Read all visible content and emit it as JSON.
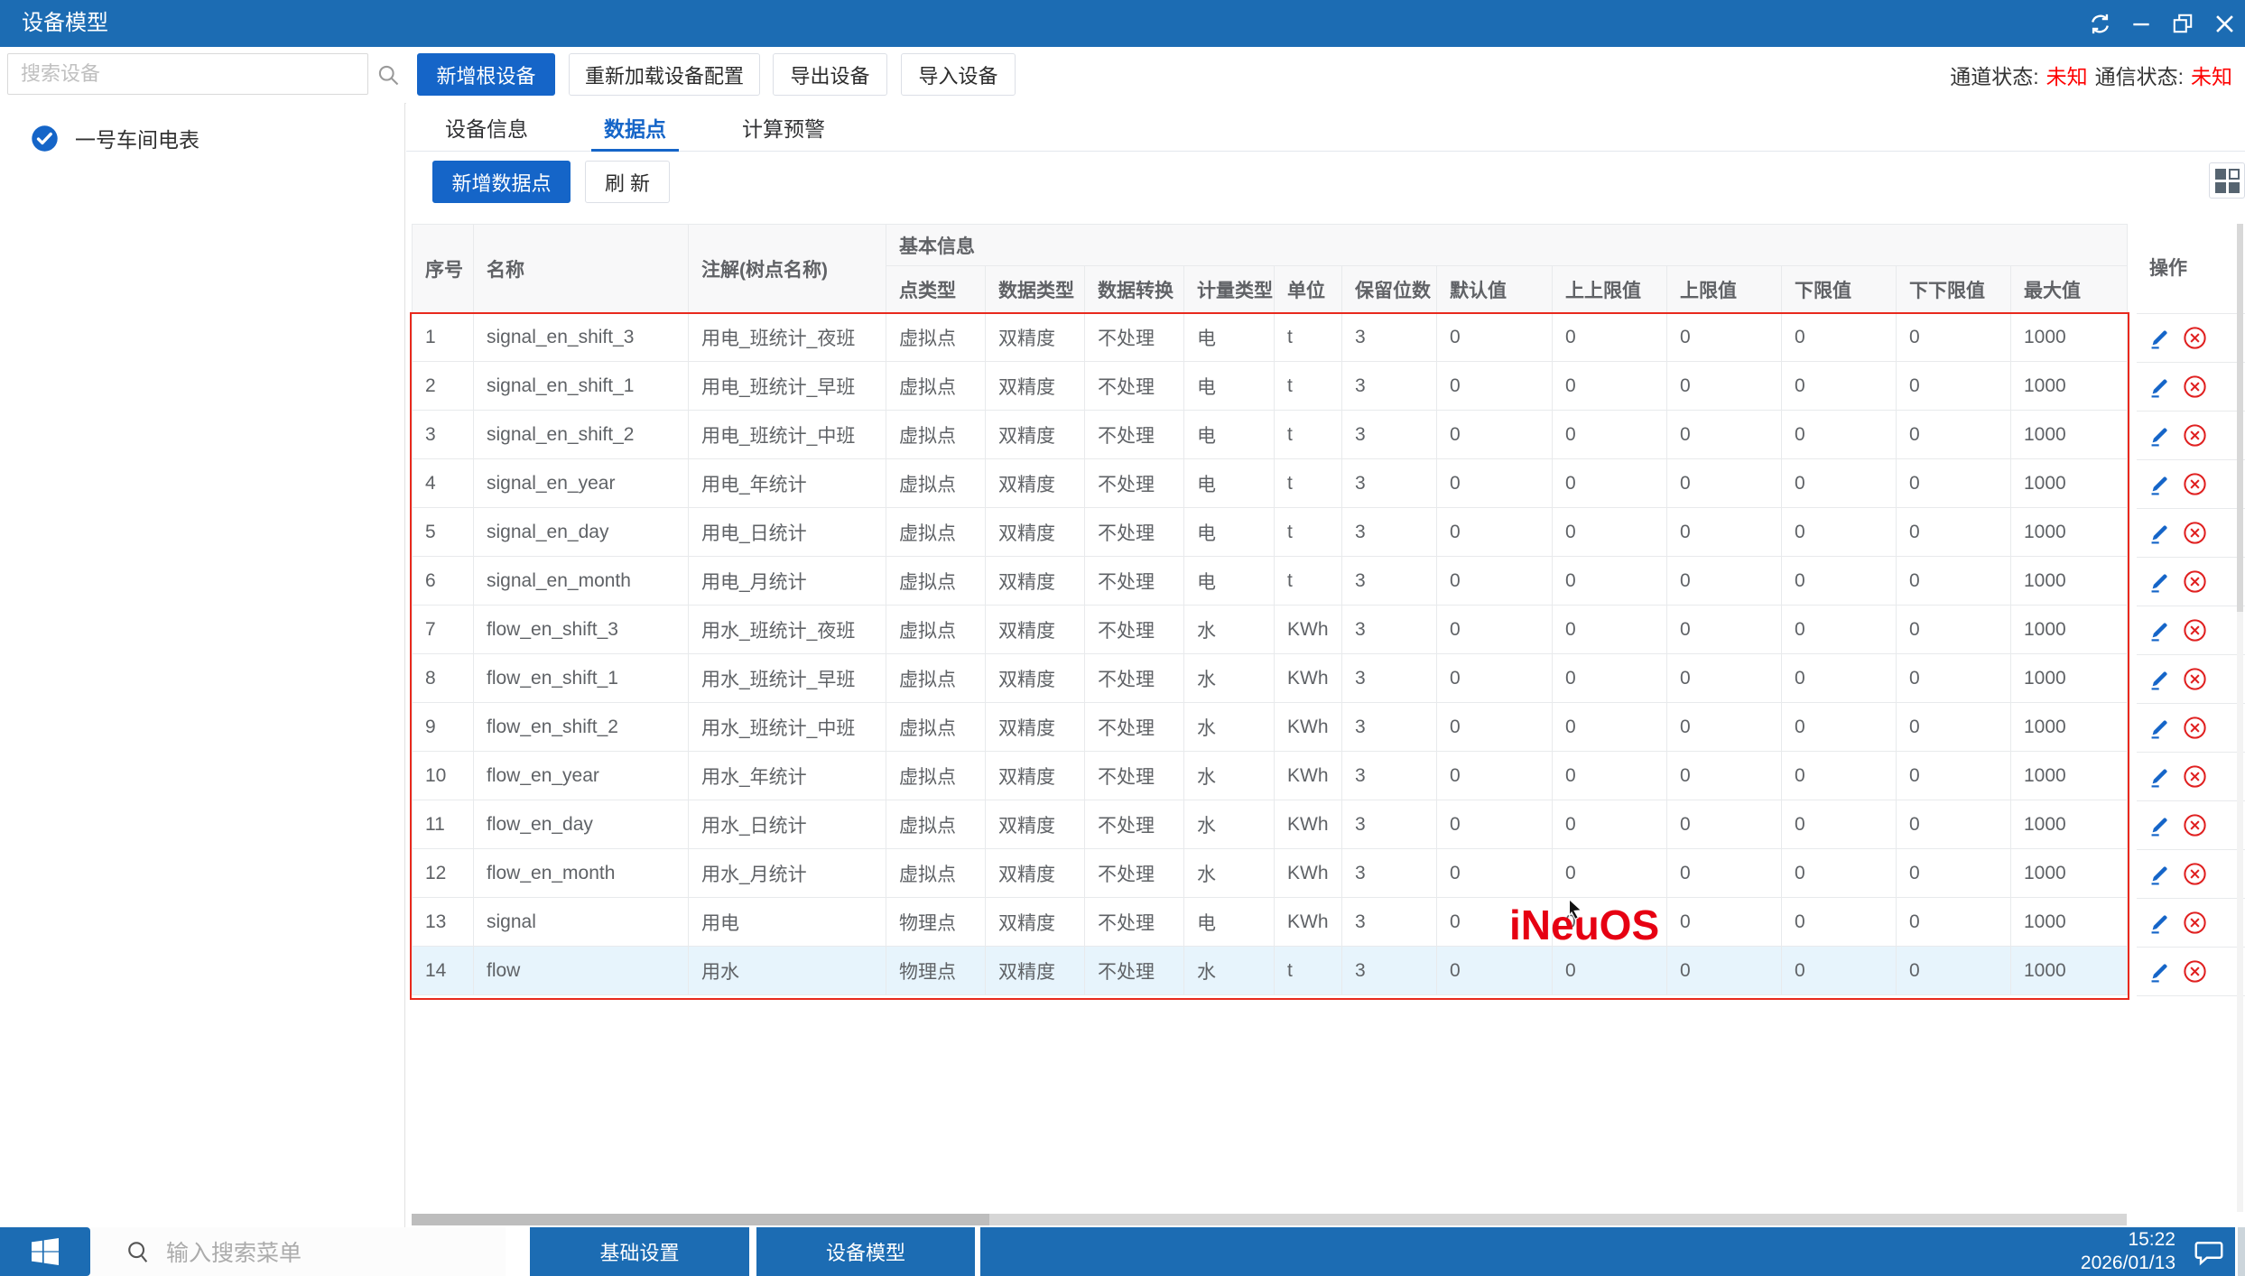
{
  "titlebar": {
    "title": "设备模型"
  },
  "toolbar": {
    "search_placeholder": "搜索设备",
    "add_root": "新增根设备",
    "reload": "重新加载设备配置",
    "export": "导出设备",
    "import": "导入设备",
    "channel_label": "通道状态:",
    "channel_value": "未知",
    "comm_label": "通信状态:",
    "comm_value": "未知"
  },
  "sidebar": {
    "device_name": "一号车间电表"
  },
  "tabs": {
    "device_info": "设备信息",
    "data_points": "数据点",
    "calc_alarm": "计算预警"
  },
  "actionbar": {
    "add_point": "新增数据点",
    "refresh": "刷 新"
  },
  "table": {
    "col_seq": "序号",
    "col_name": "名称",
    "col_comment": "注解(树点名称)",
    "group_basic": "基本信息",
    "col_ops": "操作",
    "sub_columns": [
      "点类型",
      "数据类型",
      "数据转换",
      "计量类型",
      "单位",
      "保留位数",
      "默认值",
      "上上限值",
      "上限值",
      "下限值",
      "下下限值",
      "最大值"
    ],
    "highlight_row": 13,
    "rows": [
      [
        "1",
        "signal_en_shift_3",
        "用电_班统计_夜班",
        "虚拟点",
        "双精度",
        "不处理",
        "电",
        "t",
        "3",
        "0",
        "0",
        "0",
        "0",
        "0",
        "1000"
      ],
      [
        "2",
        "signal_en_shift_1",
        "用电_班统计_早班",
        "虚拟点",
        "双精度",
        "不处理",
        "电",
        "t",
        "3",
        "0",
        "0",
        "0",
        "0",
        "0",
        "1000"
      ],
      [
        "3",
        "signal_en_shift_2",
        "用电_班统计_中班",
        "虚拟点",
        "双精度",
        "不处理",
        "电",
        "t",
        "3",
        "0",
        "0",
        "0",
        "0",
        "0",
        "1000"
      ],
      [
        "4",
        "signal_en_year",
        "用电_年统计",
        "虚拟点",
        "双精度",
        "不处理",
        "电",
        "t",
        "3",
        "0",
        "0",
        "0",
        "0",
        "0",
        "1000"
      ],
      [
        "5",
        "signal_en_day",
        "用电_日统计",
        "虚拟点",
        "双精度",
        "不处理",
        "电",
        "t",
        "3",
        "0",
        "0",
        "0",
        "0",
        "0",
        "1000"
      ],
      [
        "6",
        "signal_en_month",
        "用电_月统计",
        "虚拟点",
        "双精度",
        "不处理",
        "电",
        "t",
        "3",
        "0",
        "0",
        "0",
        "0",
        "0",
        "1000"
      ],
      [
        "7",
        "flow_en_shift_3",
        "用水_班统计_夜班",
        "虚拟点",
        "双精度",
        "不处理",
        "水",
        "KWh",
        "3",
        "0",
        "0",
        "0",
        "0",
        "0",
        "1000"
      ],
      [
        "8",
        "flow_en_shift_1",
        "用水_班统计_早班",
        "虚拟点",
        "双精度",
        "不处理",
        "水",
        "KWh",
        "3",
        "0",
        "0",
        "0",
        "0",
        "0",
        "1000"
      ],
      [
        "9",
        "flow_en_shift_2",
        "用水_班统计_中班",
        "虚拟点",
        "双精度",
        "不处理",
        "水",
        "KWh",
        "3",
        "0",
        "0",
        "0",
        "0",
        "0",
        "1000"
      ],
      [
        "10",
        "flow_en_year",
        "用水_年统计",
        "虚拟点",
        "双精度",
        "不处理",
        "水",
        "KWh",
        "3",
        "0",
        "0",
        "0",
        "0",
        "0",
        "1000"
      ],
      [
        "11",
        "flow_en_day",
        "用水_日统计",
        "虚拟点",
        "双精度",
        "不处理",
        "水",
        "KWh",
        "3",
        "0",
        "0",
        "0",
        "0",
        "0",
        "1000"
      ],
      [
        "12",
        "flow_en_month",
        "用水_月统计",
        "虚拟点",
        "双精度",
        "不处理",
        "水",
        "KWh",
        "3",
        "0",
        "0",
        "0",
        "0",
        "0",
        "1000"
      ],
      [
        "13",
        "signal",
        "用电",
        "物理点",
        "双精度",
        "不处理",
        "电",
        "KWh",
        "3",
        "0",
        "0",
        "0",
        "0",
        "0",
        "1000"
      ],
      [
        "14",
        "flow",
        "用水",
        "物理点",
        "双精度",
        "不处理",
        "水",
        "t",
        "3",
        "0",
        "0",
        "0",
        "0",
        "0",
        "1000"
      ]
    ]
  },
  "watermark": "iNeuOS",
  "taskbar": {
    "search_placeholder": "输入搜索菜单",
    "btn_basic": "基础设置",
    "btn_device": "设备模型",
    "time": "15:22",
    "date": "2026/01/13"
  },
  "colors": {
    "accent": "#1565c8",
    "titlebar_blue": "#1c6cb3",
    "status_red": "#fe0000",
    "annotation_red": "#e8291d",
    "watermark_red": "#e60012",
    "highlight_row_bg": "#e7f4fc"
  }
}
